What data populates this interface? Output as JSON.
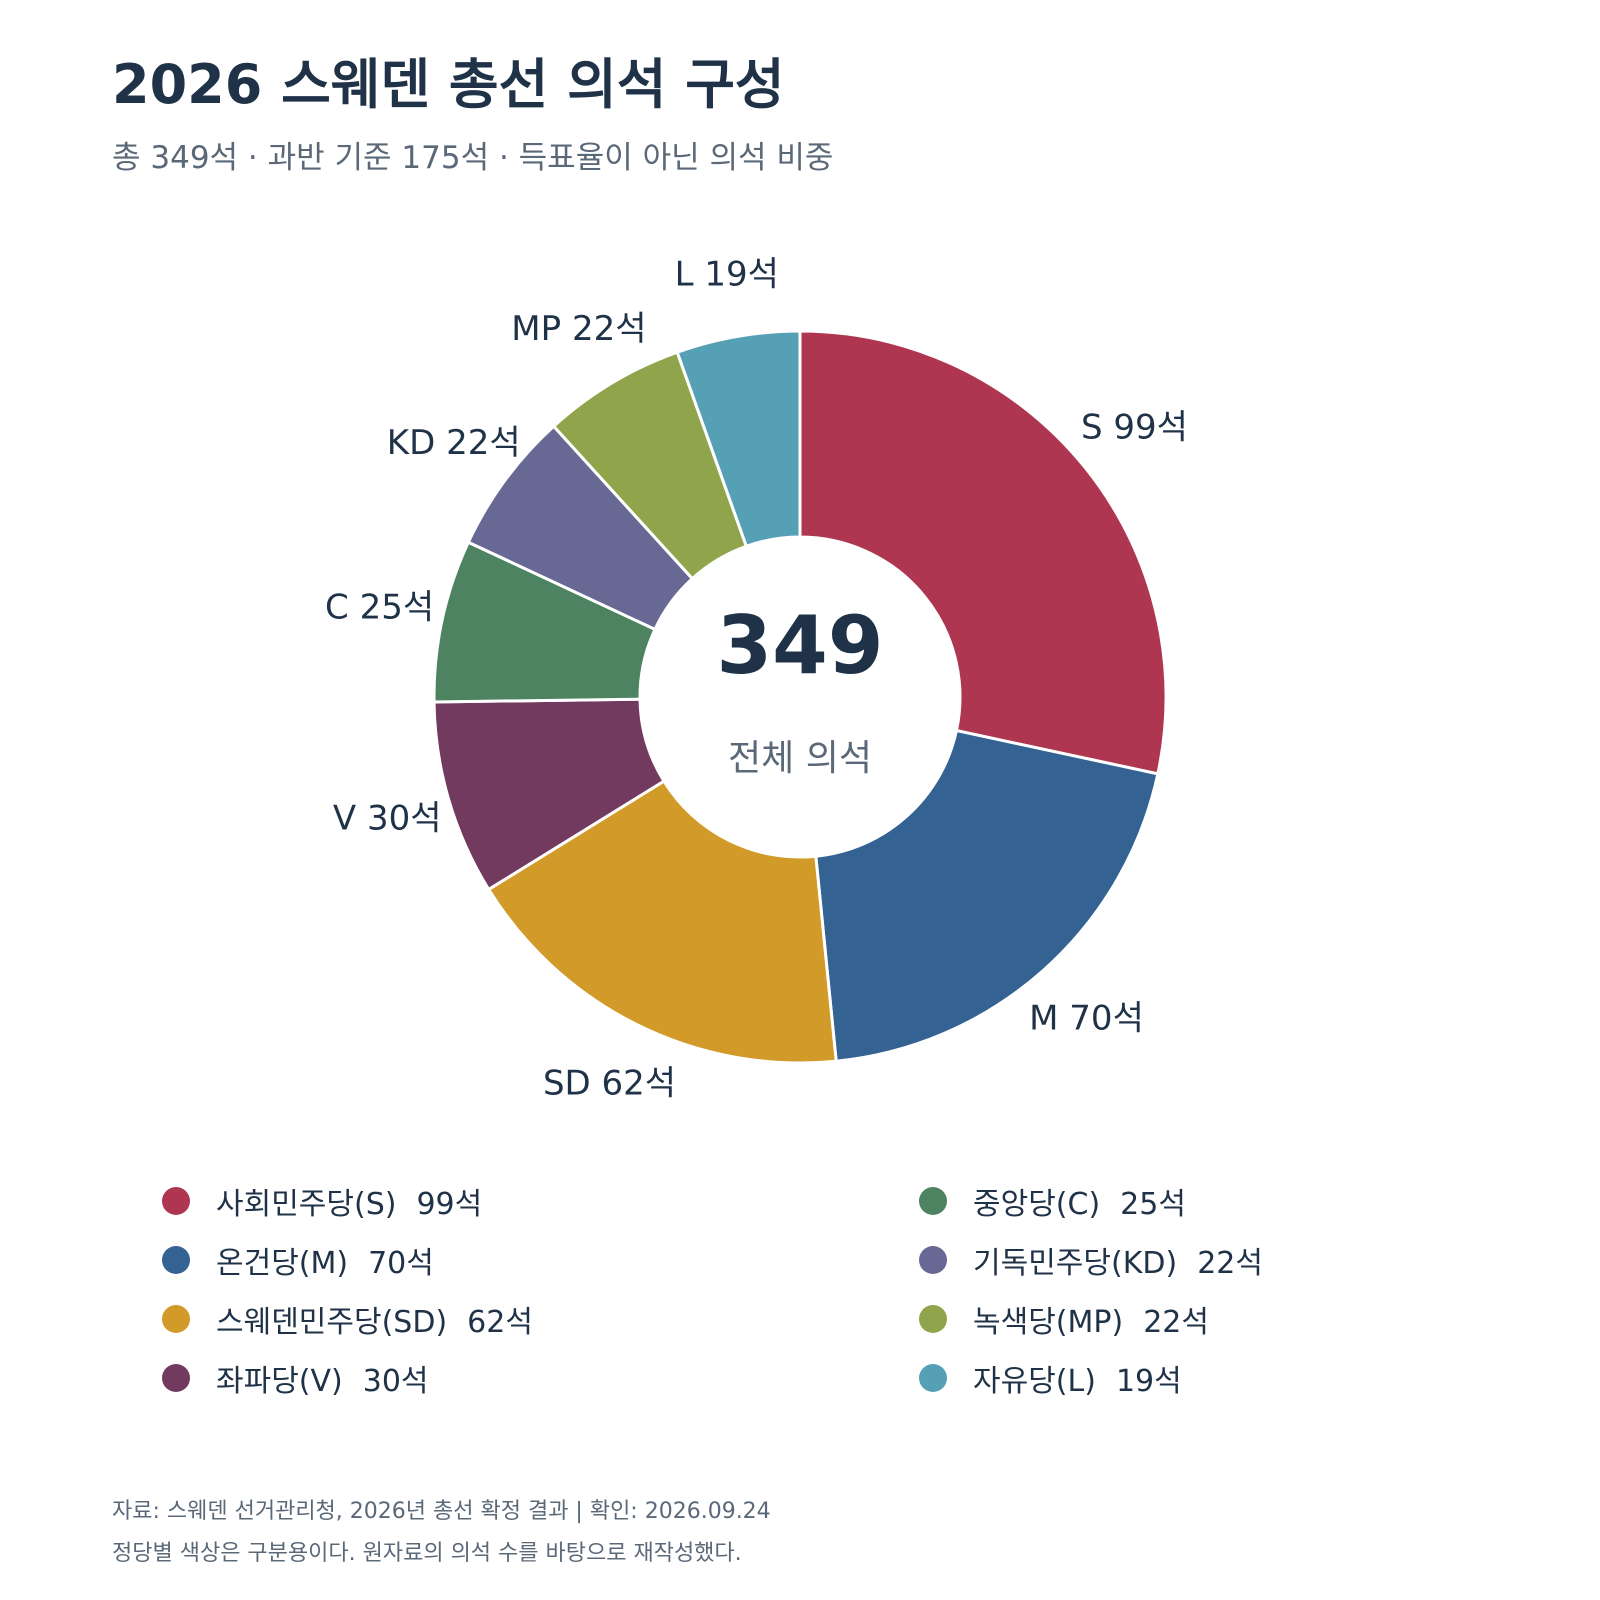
{
  "title": "2026 스웨덴 총선 의석 구성",
  "subtitle": "총 349석 · 과반 기준 175석 · 득표율이 아닌 의석 비중",
  "chart_data": {
    "type": "pie",
    "donut": true,
    "title": "2026 스웨덴 총선 의석 구성",
    "center_value": "349",
    "center_label": "전체 의석",
    "slices": [
      {
        "key": "S",
        "name": "사회민주당(S)",
        "value": 99,
        "label": "S 99석",
        "legend_value": "99석",
        "color": "#ae3651"
      },
      {
        "key": "M",
        "name": "온건당(M)",
        "value": 70,
        "label": "M 70석",
        "legend_value": "70석",
        "color": "#336293"
      },
      {
        "key": "SD",
        "name": "스웨덴민주당(SD)",
        "value": 62,
        "label": "SD 62석",
        "legend_value": "62석",
        "color": "#d19a29"
      },
      {
        "key": "V",
        "name": "좌파당(V)",
        "value": 30,
        "label": "V 30석",
        "legend_value": "30석",
        "color": "#723a5e"
      },
      {
        "key": "C",
        "name": "중앙당(C)",
        "value": 25,
        "label": "C 25석",
        "legend_value": "25석",
        "color": "#4d8360"
      },
      {
        "key": "KD",
        "name": "기독민주당(KD)",
        "value": 22,
        "label": "KD 22석",
        "legend_value": "22석",
        "color": "#686894"
      },
      {
        "key": "MP",
        "name": "녹색당(MP)",
        "value": 22,
        "label": "MP 22석",
        "legend_value": "22석",
        "color": "#90a54b"
      },
      {
        "key": "L",
        "name": "자유당(L)",
        "value": 19,
        "label": "L 19석",
        "legend_value": "19석",
        "color": "#56a0b5"
      }
    ],
    "legend_position": "bottom"
  },
  "footer": {
    "source": "자료: 스웨덴 선거관리청, 2026년 총선 확정 결과 | 확인: 2026.09.24",
    "note": "정당별 색상은 구분용이다. 원자료의 의석 수를 바탕으로 재작성했다."
  }
}
